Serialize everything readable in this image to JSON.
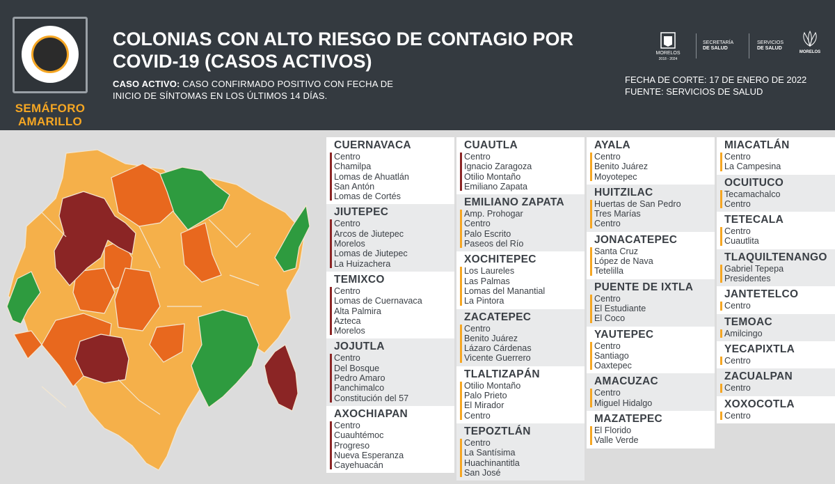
{
  "header": {
    "badge": {
      "label_line1": "SEMÁFORO",
      "label_line2": "AMARILLO",
      "color": "#f5a623"
    },
    "title_line1": "COLONIAS CON ALTO RIESGO DE CONTAGIO POR",
    "title_line2": "COVID-19 (CASOS ACTIVOS)",
    "definition_bold": "CASO ACTIVO:",
    "definition_line1": " CASO CONFIRMADO POSITIVO CON FECHA DE",
    "definition_line2": "INICIO DE SÍNTOMAS EN LOS ÚLTIMOS 14 DÍAS.",
    "logos": {
      "morelos_gov": "MORELOS",
      "morelos_gov_sub": "2018 - 2024",
      "secretaria_line1": "SECRETARÍA",
      "secretaria_line2": "DE SALUD",
      "servicios_line1": "SERVICIOS",
      "servicios_line2": "DE SALUD",
      "brand": "MORELOS"
    },
    "cutoff": "FECHA DE CORTE: 17 DE ENERO DE 2022",
    "source": "FUENTE: SERVICIOS DE SALUD"
  },
  "colors": {
    "header_bg": "#343a40",
    "risk_red": "#8b2525",
    "risk_orange": "#e8681e",
    "risk_yellow": "#f5b04a",
    "risk_green": "#2e9b3f",
    "bar_red": "#8b2525",
    "bar_orange": "#f5a623"
  },
  "columns": [
    [
      {
        "name": "CUERNAVACA",
        "bar": "red",
        "items": [
          "Centro",
          "Chamilpa",
          "Lomas de Ahuatlán",
          "San Antón",
          "Lomas de Cortés"
        ]
      },
      {
        "name": "JIUTEPEC",
        "bar": "red",
        "items": [
          "Centro",
          "Arcos de Jiutepec",
          "Morelos",
          "Lomas de Jiutepec",
          "La Huizachera"
        ]
      },
      {
        "name": "TEMIXCO",
        "bar": "red",
        "items": [
          "Centro",
          "Lomas de Cuernavaca",
          "Alta Palmira",
          "Azteca",
          "Morelos"
        ]
      },
      {
        "name": "JOJUTLA",
        "bar": "red",
        "items": [
          "Centro",
          "Del Bosque",
          "Pedro Amaro",
          "Panchimalco",
          "Constitución del 57"
        ]
      },
      {
        "name": "AXOCHIAPAN",
        "bar": "red",
        "items": [
          "Centro",
          "Cuauhtémoc",
          "Progreso",
          "Nueva Esperanza",
          "Cayehuacán"
        ]
      }
    ],
    [
      {
        "name": "CUAUTLA",
        "bar": "red",
        "items": [
          "Centro",
          "Ignacio Zaragoza",
          "Otilio Montaño",
          "Emiliano Zapata"
        ]
      },
      {
        "name": "EMILIANO ZAPATA",
        "bar": "orange",
        "items": [
          "Amp. Prohogar",
          "Centro",
          "Palo Escrito",
          "Paseos del Río"
        ]
      },
      {
        "name": "XOCHITEPEC",
        "bar": "orange",
        "items": [
          "Los Laureles",
          "Las Palmas",
          "Lomas del Manantial",
          "La Pintora"
        ]
      },
      {
        "name": "ZACATEPEC",
        "bar": "orange",
        "items": [
          "Centro",
          "Benito Juárez",
          "Lázaro Cárdenas",
          "Vicente Guerrero"
        ]
      },
      {
        "name": "TLALTIZAPÁN",
        "bar": "orange",
        "items": [
          "Otilio Montaño",
          "Palo Prieto",
          "El Mirador",
          "Centro"
        ]
      },
      {
        "name": "TEPOZTLÁN",
        "bar": "orange",
        "items": [
          "Centro",
          "La Santísima",
          "Huachinantitla",
          "San José"
        ]
      }
    ],
    [
      {
        "name": "AYALA",
        "bar": "orange",
        "items": [
          "Centro",
          "Benito Juárez",
          "Moyotepec"
        ]
      },
      {
        "name": "HUITZILAC",
        "bar": "orange",
        "items": [
          "Huertas de San Pedro",
          "Tres Marías",
          "Centro"
        ]
      },
      {
        "name": "JONACATEPEC",
        "bar": "orange",
        "items": [
          "Santa Cruz",
          "López de Nava",
          "Tetelilla"
        ]
      },
      {
        "name": "PUENTE DE IXTLA",
        "bar": "orange",
        "items": [
          "Centro",
          "El Estudiante",
          "El Coco"
        ]
      },
      {
        "name": "YAUTEPEC",
        "bar": "orange",
        "items": [
          "Centro",
          "Santiago",
          "Oaxtepec"
        ]
      },
      {
        "name": "AMACUZAC",
        "bar": "orange",
        "items": [
          "Centro",
          "Miguel Hidalgo"
        ]
      },
      {
        "name": "MAZATEPEC",
        "bar": "orange",
        "items": [
          "El Florido",
          "Valle Verde"
        ]
      }
    ],
    [
      {
        "name": "MIACATLÁN",
        "bar": "orange",
        "items": [
          "Centro",
          "La Campesina"
        ]
      },
      {
        "name": "OCUITUCO",
        "bar": "orange",
        "items": [
          "Tecamachalco",
          "Centro"
        ]
      },
      {
        "name": "TETECALA",
        "bar": "orange",
        "items": [
          "Centro",
          "Cuautlita"
        ]
      },
      {
        "name": "TLAQUILTENANGO",
        "bar": "orange",
        "items": [
          "Gabriel Tepepa",
          "Presidentes"
        ]
      },
      {
        "name": "JANTETELCO",
        "bar": "orange",
        "items": [
          "Centro"
        ]
      },
      {
        "name": "TEMOAC",
        "bar": "orange",
        "items": [
          "Amilcingo"
        ]
      },
      {
        "name": "YECAPIXTLA",
        "bar": "orange",
        "items": [
          "Centro"
        ]
      },
      {
        "name": "ZACUALPAN",
        "bar": "orange",
        "items": [
          "Centro"
        ]
      },
      {
        "name": "XOXOCOTLA",
        "bar": "orange",
        "items": [
          "Centro"
        ]
      }
    ]
  ]
}
